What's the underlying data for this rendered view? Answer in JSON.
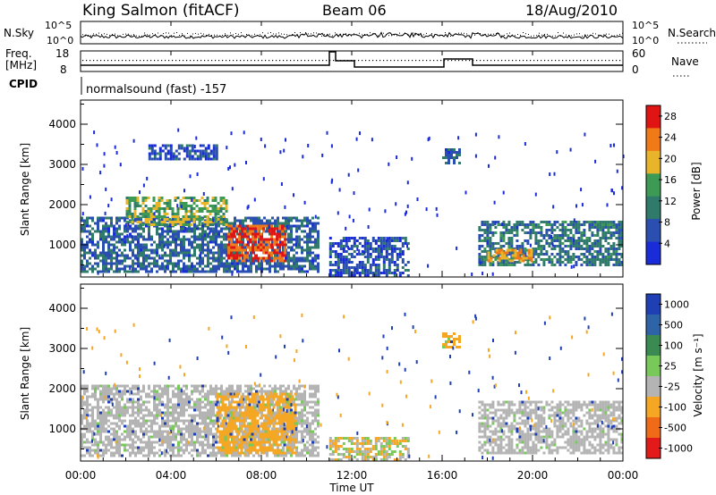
{
  "header": {
    "station": "King Salmon (fitACF)",
    "beam": "Beam 06",
    "date": "18/Aug/2010"
  },
  "strip_labels": {
    "nsky": "N.Sky",
    "nsearch": "N.Search",
    "freq_line1": "Freq.",
    "freq_line2": "[MHz]",
    "cpid": "CPID",
    "nave": "Nave",
    "cpid_value": "normalsound (fast) -157"
  },
  "strip_ticks": {
    "noise_top": "10^5",
    "noise_bottom": "10^0",
    "freq_top": "18",
    "freq_bottom": "8",
    "nave_top": "60",
    "nave_bottom": "0"
  },
  "chart_data": [
    {
      "type": "heatmap",
      "title": "",
      "xlabel": "",
      "ylabel": "Slant Range [km]",
      "xlim_hours": [
        0,
        24
      ],
      "ylim": [
        200,
        4600
      ],
      "yticks": [
        "1000",
        "2000",
        "3000",
        "4000"
      ],
      "colorbar": {
        "label": "Power [dB]",
        "ticks": [
          "4",
          "8",
          "12",
          "16",
          "20",
          "24",
          "28"
        ],
        "range": [
          0,
          30
        ],
        "colors": [
          "#1a2bd8",
          "#2a4fb0",
          "#2f7a6a",
          "#3d9a55",
          "#e8b52a",
          "#f07a18",
          "#e11414"
        ]
      },
      "regions": [
        {
          "t0": 0.0,
          "t1": 10.5,
          "r0": 300,
          "r1": 1700,
          "level": 8
        },
        {
          "t0": 2.0,
          "t1": 6.5,
          "r0": 1500,
          "r1": 2200,
          "level": 16
        },
        {
          "t0": 6.5,
          "t1": 9.0,
          "r0": 600,
          "r1": 1500,
          "level": 26
        },
        {
          "t0": 3.0,
          "t1": 6.0,
          "r0": 3100,
          "r1": 3500,
          "level": 6
        },
        {
          "t0": 11.0,
          "t1": 14.5,
          "r0": 200,
          "r1": 1200,
          "level": 6
        },
        {
          "t0": 16.0,
          "t1": 16.8,
          "r0": 3000,
          "r1": 3400,
          "level": 8
        },
        {
          "t0": 17.6,
          "t1": 24.0,
          "r0": 500,
          "r1": 1600,
          "level": 10
        },
        {
          "t0": 18.0,
          "t1": 20.0,
          "r0": 600,
          "r1": 900,
          "level": 20
        }
      ]
    },
    {
      "type": "heatmap",
      "title": "",
      "xlabel": "Time UT",
      "ylabel": "Slant Range [km]",
      "xlim_hours": [
        0,
        24
      ],
      "ylim": [
        200,
        4600
      ],
      "xticks": [
        "00:00",
        "04:00",
        "08:00",
        "12:00",
        "16:00",
        "20:00",
        "00:00"
      ],
      "yticks": [
        "1000",
        "2000",
        "3000",
        "4000"
      ],
      "colorbar": {
        "label": "Velocity [m s⁻¹]",
        "ticks": [
          "1000",
          "500",
          "100",
          "25",
          "-25",
          "-100",
          "-500",
          "-1000"
        ],
        "colors": [
          "#1f3fb4",
          "#2f63a8",
          "#3a8a52",
          "#79c85a",
          "#b4b4b4",
          "#f5a623",
          "#ef6b18",
          "#e31a1a"
        ]
      },
      "regions": [
        {
          "t0": 0.0,
          "t1": 10.5,
          "r0": 300,
          "r1": 2100,
          "class": "gray"
        },
        {
          "t0": 6.0,
          "t1": 9.5,
          "r0": 400,
          "r1": 1900,
          "class": "orange"
        },
        {
          "t0": 11.0,
          "t1": 14.5,
          "r0": 200,
          "r1": 800,
          "class": "mixed"
        },
        {
          "t0": 16.0,
          "t1": 16.8,
          "r0": 3000,
          "r1": 3400,
          "class": "orange"
        },
        {
          "t0": 17.6,
          "t1": 24.0,
          "r0": 400,
          "r1": 1700,
          "class": "gray"
        }
      ]
    }
  ]
}
